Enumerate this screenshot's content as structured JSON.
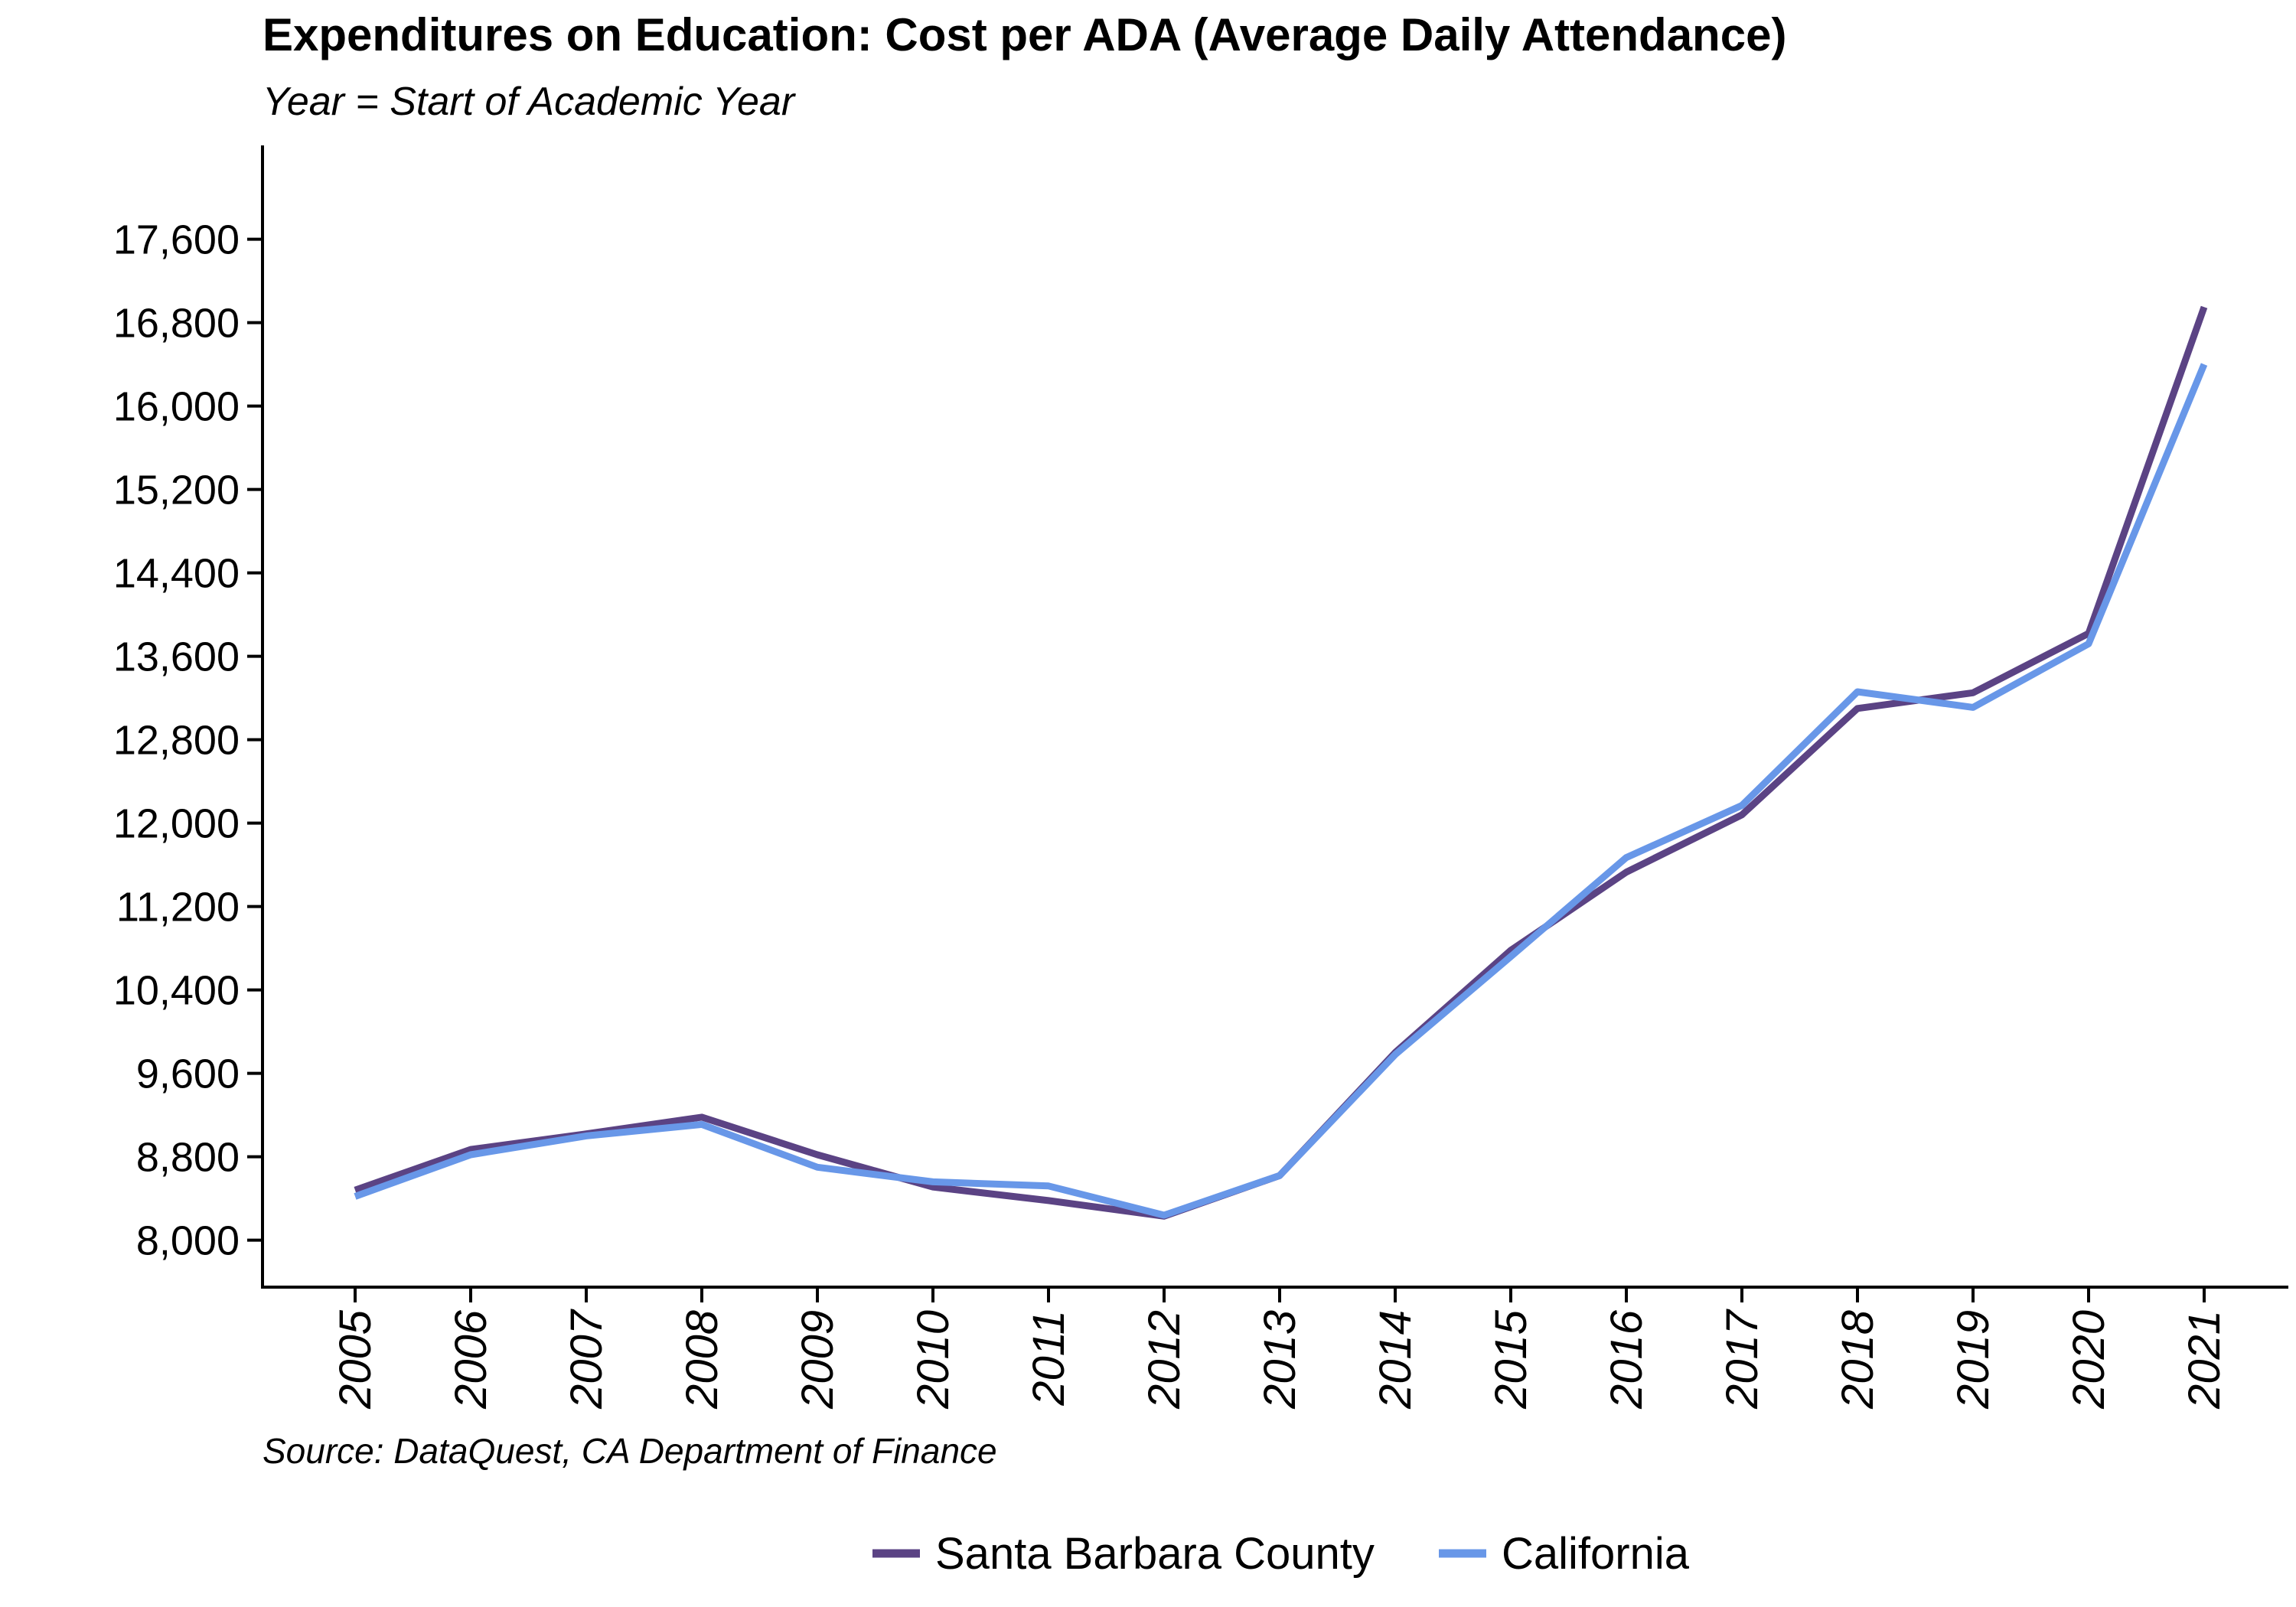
{
  "chart_data": {
    "type": "line",
    "title": "Expenditures on Education: Cost per ADA (Average Daily Attendance)",
    "subtitle": "Year = Start of Academic Year",
    "source": "Source: DataQuest, CA Department of Finance",
    "xlabel": "",
    "ylabel": "",
    "x": [
      "2005",
      "2006",
      "2007",
      "2008",
      "2009",
      "2010",
      "2011",
      "2012",
      "2013",
      "2014",
      "2015",
      "2016",
      "2017",
      "2018",
      "2019",
      "2020",
      "2021"
    ],
    "ylim": [
      7550,
      18500
    ],
    "yticks": [
      8000,
      8800,
      9600,
      10400,
      11200,
      12000,
      12800,
      13600,
      14400,
      15200,
      16000,
      16800,
      17600
    ],
    "ytick_labels": [
      "8,000",
      "8,800",
      "9,600",
      "10,400",
      "11,200",
      "12,000",
      "12,800",
      "13,600",
      "14,400",
      "15,200",
      "16,000",
      "16,800",
      "17,600"
    ],
    "grid": false,
    "legend_position": "bottom",
    "series": [
      {
        "name": "Santa Barbara County",
        "color": "#5b4384",
        "values": [
          8480,
          8870,
          9020,
          9180,
          8820,
          8510,
          8380,
          8230,
          8620,
          9800,
          10780,
          11530,
          12080,
          13100,
          13250,
          13820,
          16950
        ]
      },
      {
        "name": "California",
        "color": "#6897e8",
        "values": [
          8420,
          8820,
          9000,
          9110,
          8700,
          8560,
          8520,
          8240,
          8620,
          9780,
          10720,
          11670,
          12170,
          13260,
          13110,
          13720,
          16400
        ]
      }
    ]
  }
}
